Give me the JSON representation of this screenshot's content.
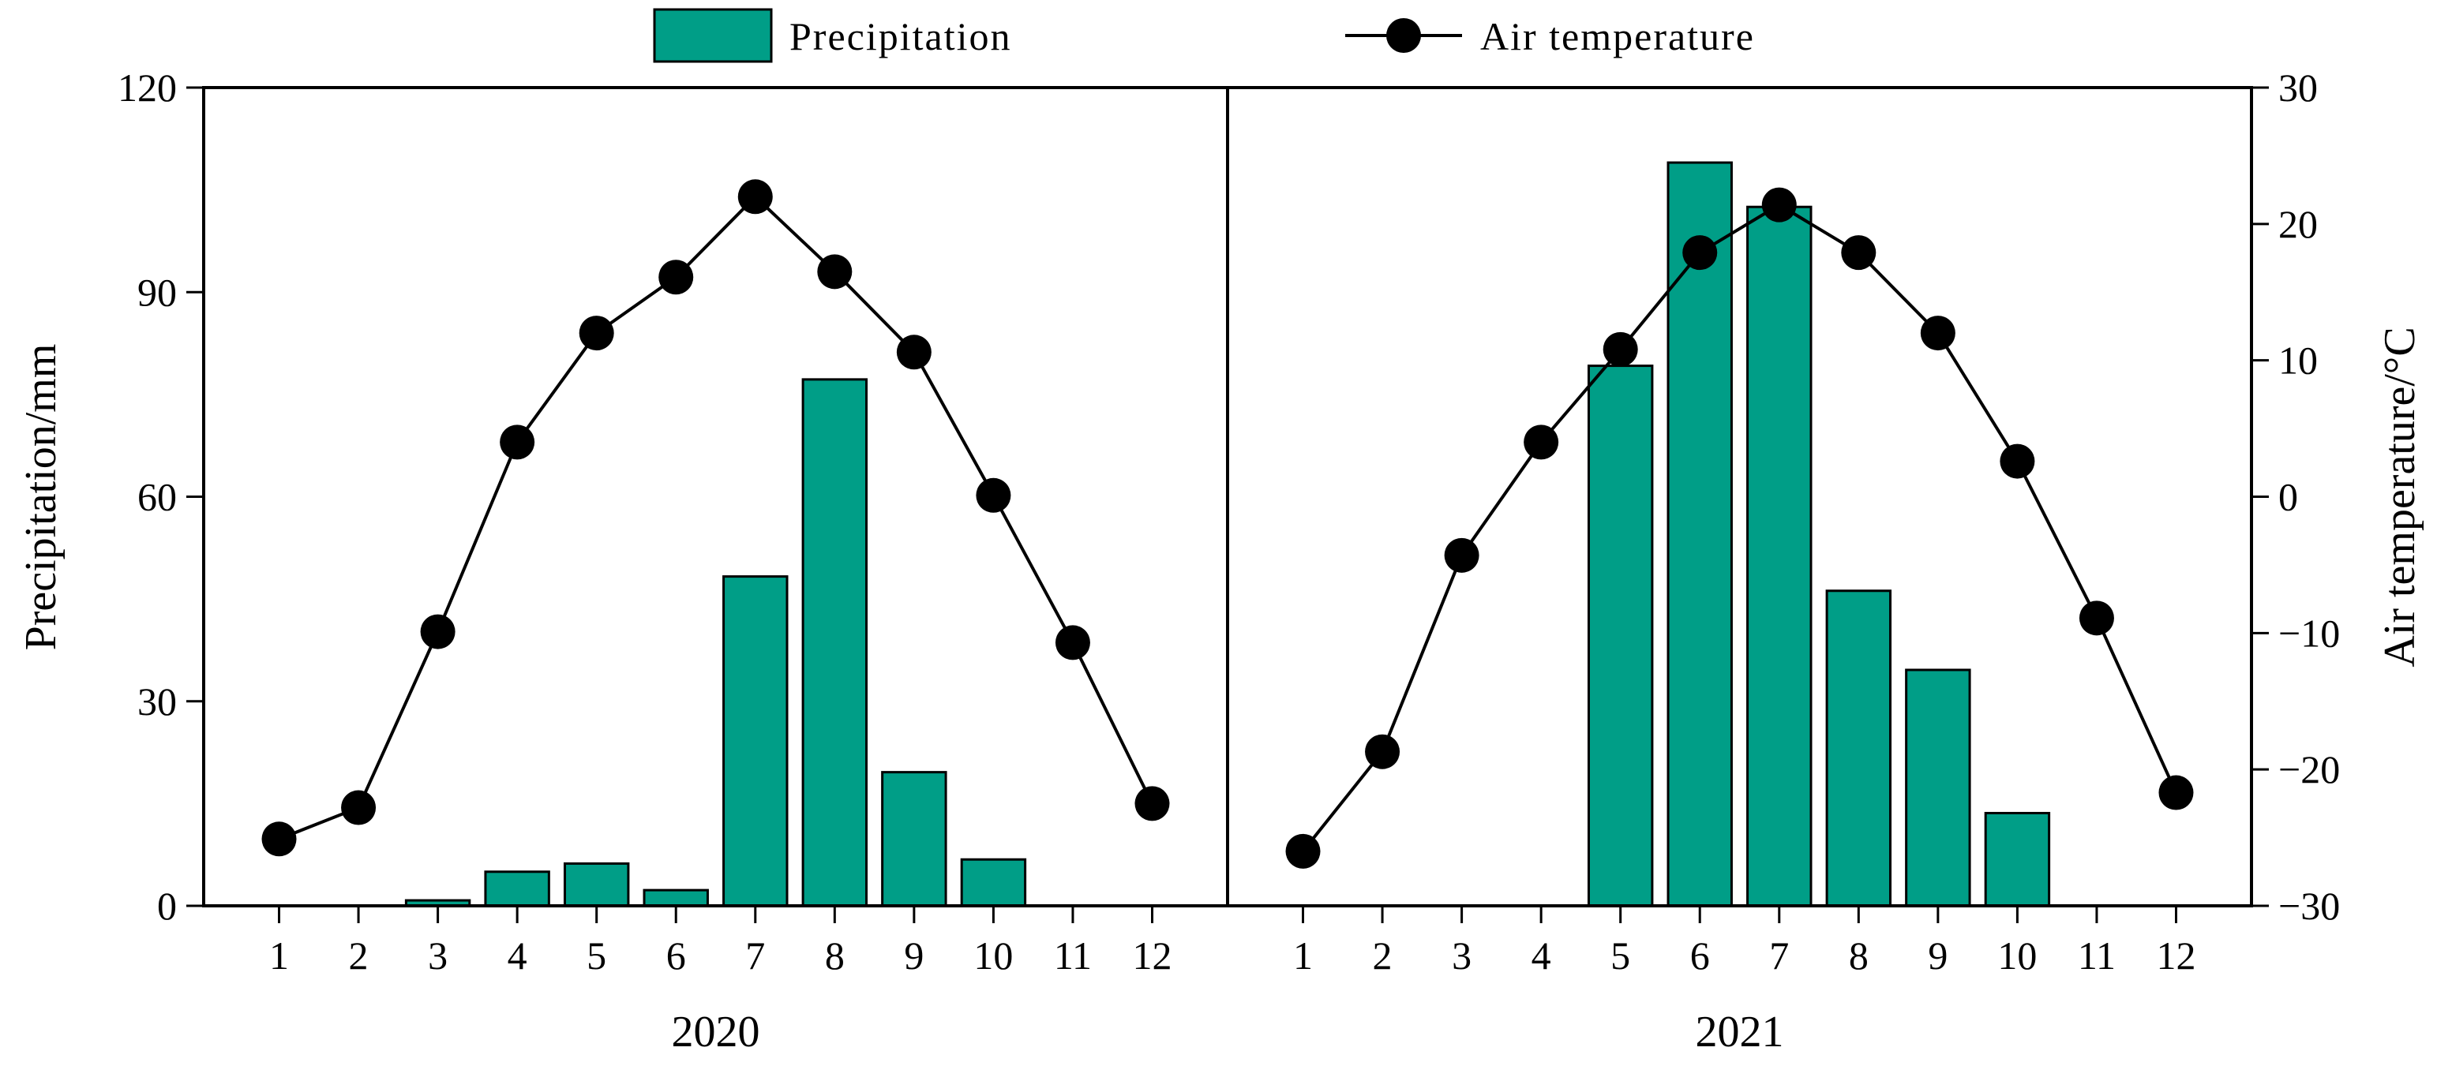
{
  "chart_data": {
    "type": "bar+line",
    "legend": {
      "placement": "top-center",
      "entries": [
        {
          "key": "precip",
          "label": "Precipitation",
          "kind": "bar"
        },
        {
          "key": "temp",
          "label": "Air temperature",
          "kind": "line-marker"
        }
      ]
    },
    "y_left": {
      "label": "Precipitation/mm",
      "range": [
        0,
        120
      ],
      "ticks": [
        "0",
        "30",
        "60",
        "90",
        "120"
      ]
    },
    "y_right": {
      "label": "Air temperature/°C",
      "range": [
        -30,
        30
      ],
      "ticks": [
        "30",
        "20",
        "10",
        "0",
        "−10",
        "−20",
        "−30"
      ]
    },
    "x_ticks": [
      "1",
      "2",
      "3",
      "4",
      "5",
      "6",
      "7",
      "8",
      "9",
      "10",
      "11",
      "12"
    ],
    "panels": [
      {
        "year": "2020",
        "months": [
          1,
          2,
          3,
          4,
          5,
          6,
          7,
          8,
          9,
          10,
          11,
          12
        ],
        "precipitation": [
          0,
          0,
          0.8,
          5,
          6.2,
          2.3,
          48.3,
          77.2,
          19.6,
          6.8,
          0,
          0
        ],
        "air_temperature": [
          -25.1,
          -22.8,
          -9.9,
          4.0,
          12.0,
          16.1,
          22.0,
          16.5,
          10.6,
          0.1,
          -10.7,
          -22.5
        ]
      },
      {
        "year": "2021",
        "months": [
          1,
          2,
          3,
          4,
          5,
          6,
          7,
          8,
          9,
          10,
          11,
          12
        ],
        "precipitation": [
          0,
          0,
          0,
          0,
          79.2,
          109,
          102.5,
          46.2,
          34.6,
          13.6,
          0,
          0
        ],
        "air_temperature": [
          -26.0,
          -18.7,
          -4.3,
          4.0,
          10.8,
          17.9,
          21.4,
          17.9,
          12.0,
          2.6,
          -8.9,
          -21.7
        ]
      }
    ],
    "colors": {
      "bar": "#009e87",
      "line": "#000000",
      "marker": "#000000"
    }
  }
}
